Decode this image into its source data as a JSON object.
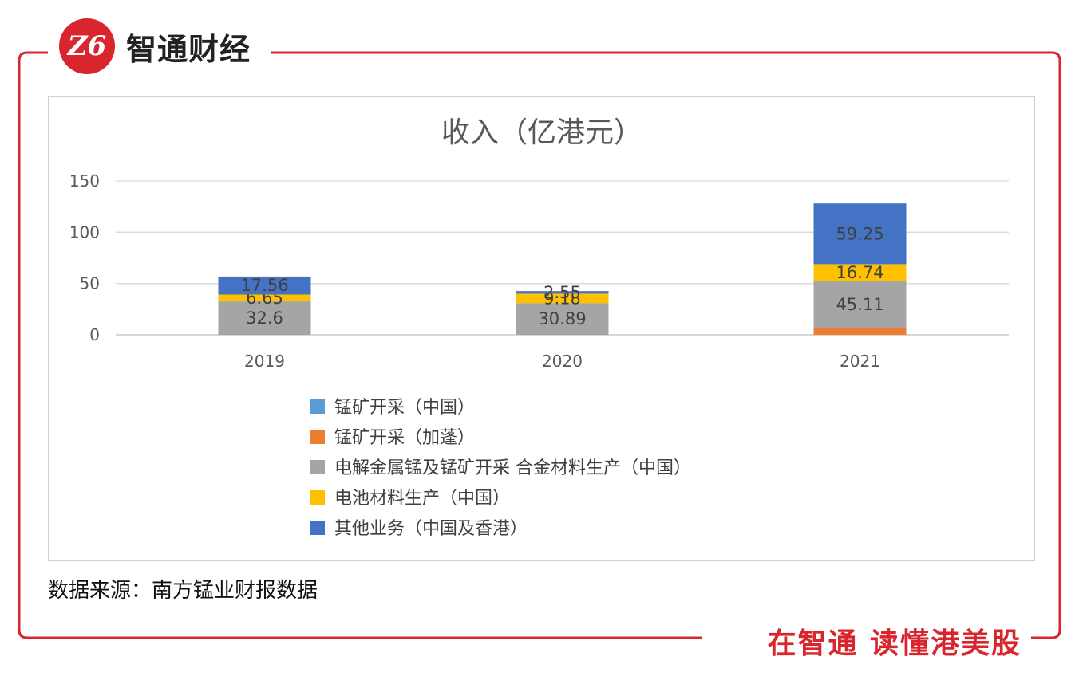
{
  "brand": {
    "logo_text": "Z6",
    "name": "智通财经"
  },
  "chart_data": {
    "type": "bar",
    "stacked": true,
    "title": "收入（亿港元）",
    "categories": [
      "2019",
      "2020",
      "2021"
    ],
    "ylim": [
      0,
      150
    ],
    "yticks": [
      0,
      50,
      100,
      150
    ],
    "grid": true,
    "legend_position": "bottom",
    "series": [
      {
        "name": "锰矿开采（中国）",
        "color": "#5b9bd5",
        "values": [
          0,
          0,
          0
        ],
        "labels": [
          "",
          "",
          ""
        ]
      },
      {
        "name": "锰矿开采（加蓬）",
        "color": "#ed7d31",
        "values": [
          0,
          0,
          7
        ],
        "labels": [
          "",
          "",
          ""
        ]
      },
      {
        "name": "电解金属锰及锰矿开采 合金材料生产（中国）",
        "color": "#a5a5a5",
        "values": [
          32.6,
          30.89,
          45.11
        ],
        "labels": [
          "32.6",
          "30.89",
          "45.11"
        ]
      },
      {
        "name": "电池材料生产（中国）",
        "color": "#ffc000",
        "values": [
          6.65,
          9.18,
          16.74
        ],
        "labels": [
          "6.65",
          "9.18",
          "16.74"
        ]
      },
      {
        "name": "其他业务（中国及香港）",
        "color": "#4472c4",
        "values": [
          17.56,
          2.55,
          59.25
        ],
        "labels": [
          "17.56",
          "2.55",
          "59.25"
        ]
      }
    ]
  },
  "source_text": "数据来源：南方锰业财报数据",
  "slogan": "在智通 读懂港美股"
}
